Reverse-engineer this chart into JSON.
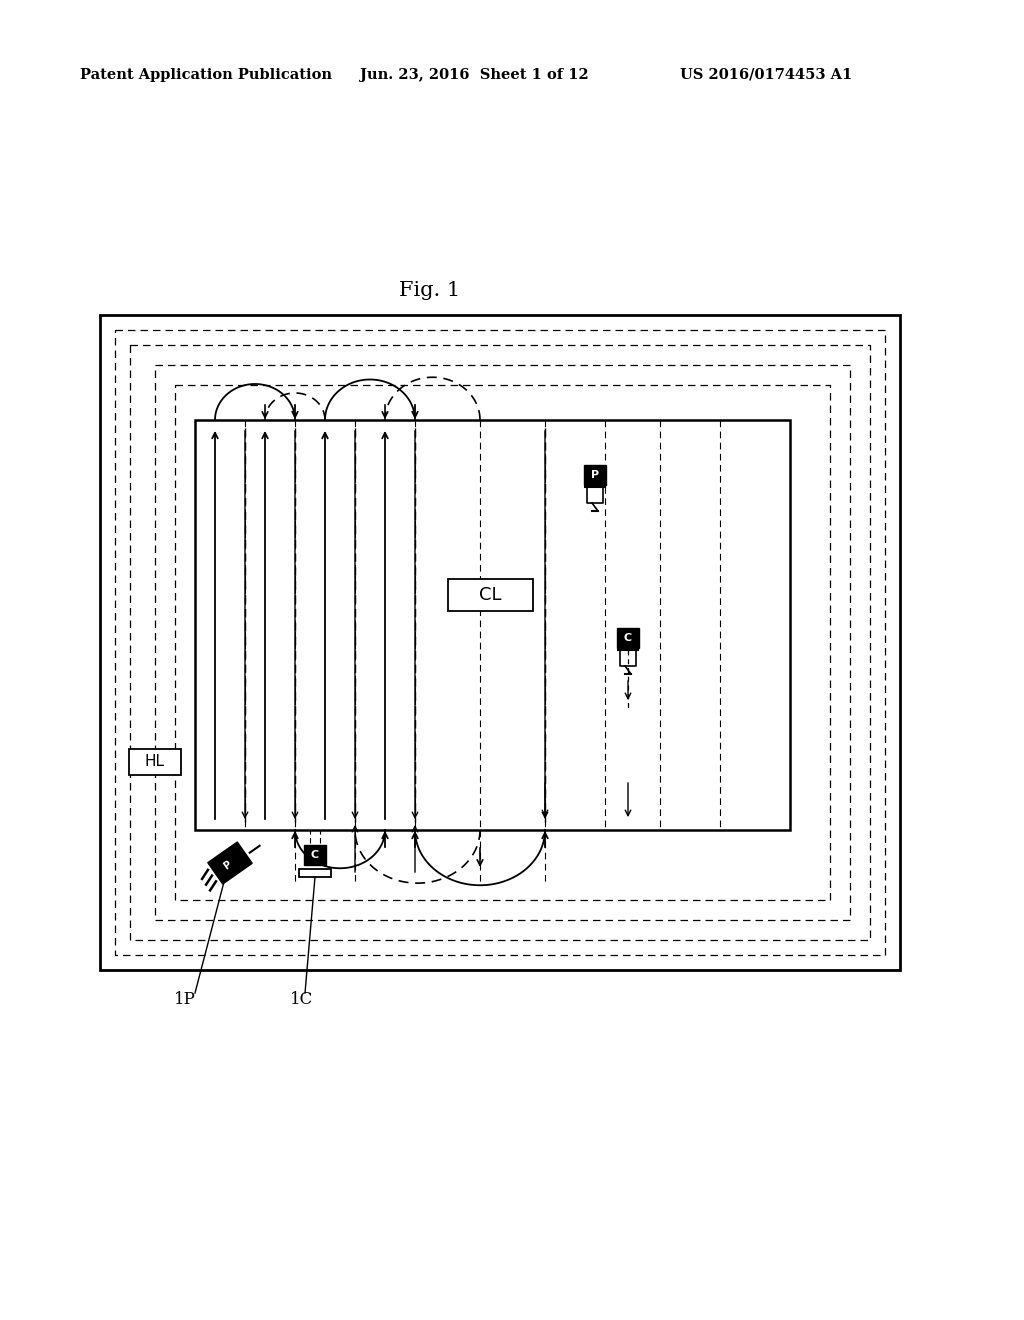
{
  "bg_color": "#ffffff",
  "text_color": "#000000",
  "header_left": "Patent Application Publication",
  "header_center": "Jun. 23, 2016  Sheet 1 of 12",
  "header_right": "US 2016/0174453 A1",
  "fig_label": "Fig. 1",
  "label_1P": "1P",
  "label_1C": "1C",
  "label_CL": "CL",
  "label_HL": "HL"
}
